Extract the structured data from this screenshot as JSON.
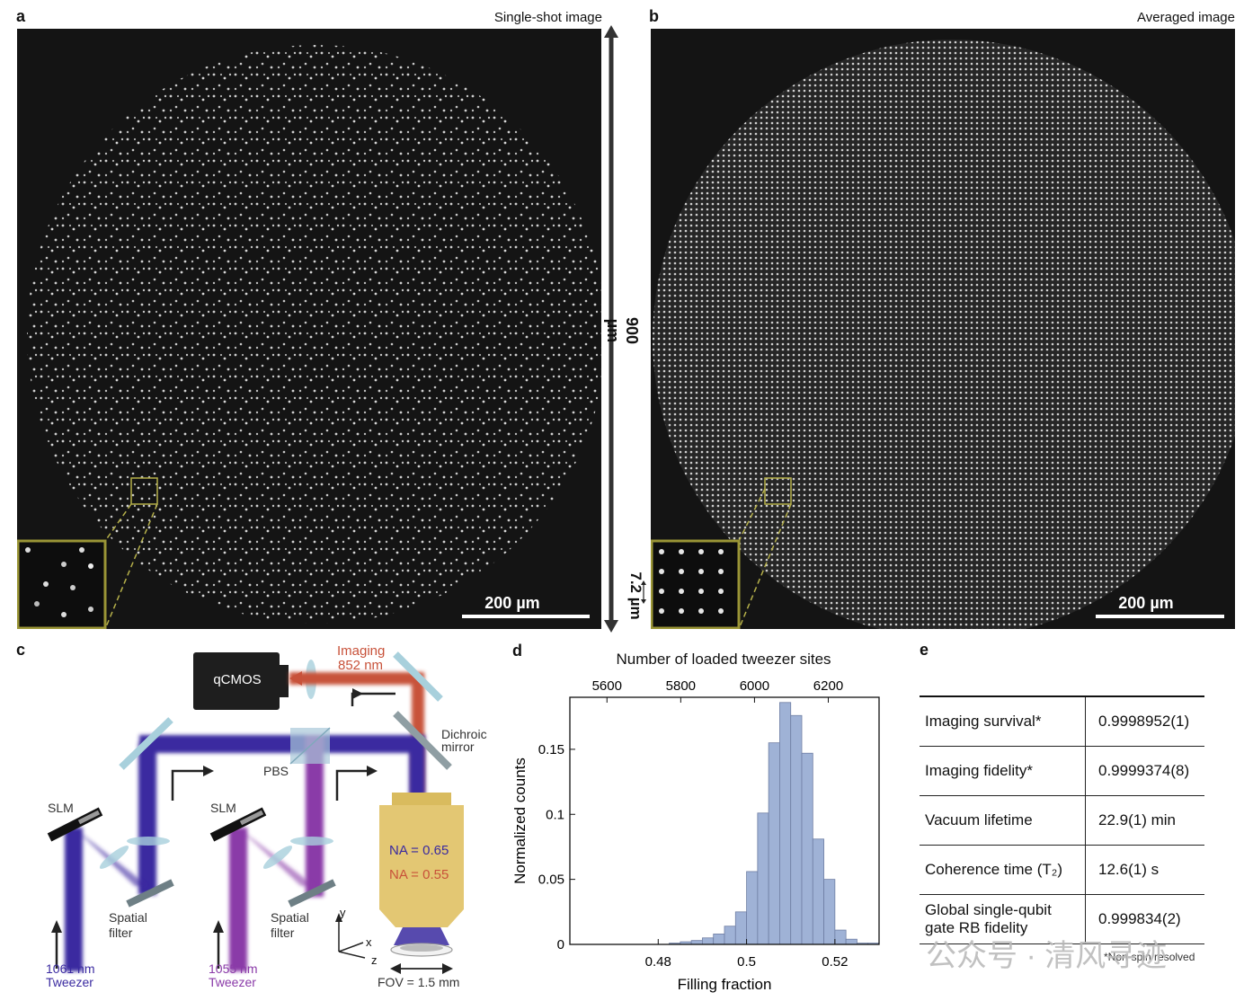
{
  "panel_a": {
    "letter": "a",
    "title": "Single-shot image",
    "scale_bar": "200 µm",
    "fov_label": "900 µm",
    "spacing_label": "7.2 µm"
  },
  "panel_b": {
    "letter": "b",
    "title": "Averaged image",
    "scale_bar": "200 µm"
  },
  "panel_c": {
    "letter": "c",
    "camera": "qCMOS",
    "imaging": "Imaging",
    "imaging_wl": "852 nm",
    "dichroic_1": "Dichroic",
    "dichroic_2": "mirror",
    "pbs": "PBS",
    "slm_1": "SLM",
    "slm_2": "SLM",
    "spatial_1a": "Spatial",
    "spatial_1b": "filter",
    "spatial_2a": "Spatial",
    "spatial_2b": "filter",
    "na_1": "NA = 0.65",
    "na_2": "NA = 0.55",
    "tw1_wl": "1061 nm",
    "tw1_name": "Tweezer",
    "tw2_wl": "1055 nm",
    "tw2_name": "Tweezer",
    "axis_y": "y",
    "axis_x": "x",
    "axis_z": "z",
    "fov": "FOV = 1.5 mm",
    "colors": {
      "blue_beam": "#3a2aa0",
      "purple_beam": "#8a3aa8",
      "red_beam": "#c8523a",
      "objective": "#e3c773"
    }
  },
  "panel_d": {
    "letter": "d"
  },
  "chart_data": {
    "type": "bar",
    "xlabel": "Filling fraction",
    "ylabel": "Normalized counts",
    "top_xlabel": "Number of loaded tweezer sites",
    "xlim": [
      0.46,
      0.53
    ],
    "ylim": [
      0,
      0.19
    ],
    "xticks": [
      "0.48",
      "0.5",
      "0.52"
    ],
    "xtick_values": [
      0.48,
      0.5,
      0.52
    ],
    "yticks": [
      "0",
      "0.05",
      "0.1",
      "0.15"
    ],
    "ytick_values": [
      0,
      0.05,
      0.1,
      0.15
    ],
    "top_xticks": [
      "5600",
      "5800",
      "6000",
      "6200"
    ],
    "top_xtick_values": [
      0.4684,
      0.4851,
      0.5018,
      0.5185
    ],
    "bin_width": 0.0025,
    "bin_starts": [
      0.4825,
      0.485,
      0.4875,
      0.49,
      0.4925,
      0.495,
      0.4975,
      0.5,
      0.5025,
      0.505,
      0.5075,
      0.51,
      0.5125,
      0.515,
      0.5175,
      0.52,
      0.5225,
      0.525,
      0.5275
    ],
    "values": [
      0.001,
      0.002,
      0.003,
      0.005,
      0.008,
      0.014,
      0.025,
      0.056,
      0.101,
      0.155,
      0.186,
      0.176,
      0.147,
      0.081,
      0.05,
      0.011,
      0.004,
      0.001,
      0.001
    ],
    "bar_color": "#9fb2d6",
    "bar_edge": "#6f7ea3",
    "grid": false
  },
  "panel_e": {
    "letter": "e",
    "rows": [
      {
        "label": "Imaging survival*",
        "value": "0.9998952(1)"
      },
      {
        "label": "Imaging fidelity*",
        "value": "0.9999374(8)"
      },
      {
        "label": "Vacuum lifetime",
        "value": "22.9(1) min"
      },
      {
        "label": "Coherence time (T₂)",
        "value": "12.6(1) s"
      },
      {
        "label": "Global single-qubit gate RB fidelity",
        "value": "0.999834(2)"
      }
    ],
    "footnote": "*Non-spin resolved"
  },
  "watermark": "公众号 · 清风寻迹"
}
